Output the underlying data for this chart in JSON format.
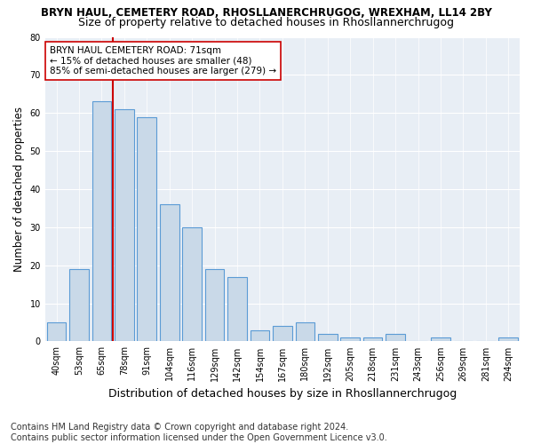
{
  "title_line1": "BRYN HAUL, CEMETERY ROAD, RHOSLLANERCHRUGOG, WREXHAM, LL14 2BY",
  "title_line2": "Size of property relative to detached houses in Rhosllannerchrugog",
  "xlabel": "Distribution of detached houses by size in Rhosllannerchrugog",
  "ylabel": "Number of detached properties",
  "categories": [
    "40sqm",
    "53sqm",
    "65sqm",
    "78sqm",
    "91sqm",
    "104sqm",
    "116sqm",
    "129sqm",
    "142sqm",
    "154sqm",
    "167sqm",
    "180sqm",
    "192sqm",
    "205sqm",
    "218sqm",
    "231sqm",
    "243sqm",
    "256sqm",
    "269sqm",
    "281sqm",
    "294sqm"
  ],
  "values": [
    5,
    19,
    63,
    61,
    59,
    36,
    30,
    19,
    17,
    3,
    4,
    5,
    2,
    1,
    1,
    2,
    0,
    1,
    0,
    0,
    1
  ],
  "bar_color": "#c9d9e8",
  "bar_edge_color": "#5b9bd5",
  "vline_x": 2.5,
  "vline_color": "#cc0000",
  "annotation_line1": "BRYN HAUL CEMETERY ROAD: 71sqm",
  "annotation_line2": "← 15% of detached houses are smaller (48)",
  "annotation_line3": "85% of semi-detached houses are larger (279) →",
  "annotation_box_color": "#ffffff",
  "annotation_box_edge": "#cc0000",
  "ylim": [
    0,
    80
  ],
  "yticks": [
    0,
    10,
    20,
    30,
    40,
    50,
    60,
    70,
    80
  ],
  "plot_bg_color": "#e8eef5",
  "title_fontsize": 8.5,
  "subtitle_fontsize": 9,
  "ylabel_fontsize": 8.5,
  "xlabel_fontsize": 9,
  "tick_fontsize": 7,
  "annotation_fontsize": 7.5,
  "footer_fontsize": 7,
  "footer_line1": "Contains HM Land Registry data © Crown copyright and database right 2024.",
  "footer_line2": "Contains public sector information licensed under the Open Government Licence v3.0."
}
